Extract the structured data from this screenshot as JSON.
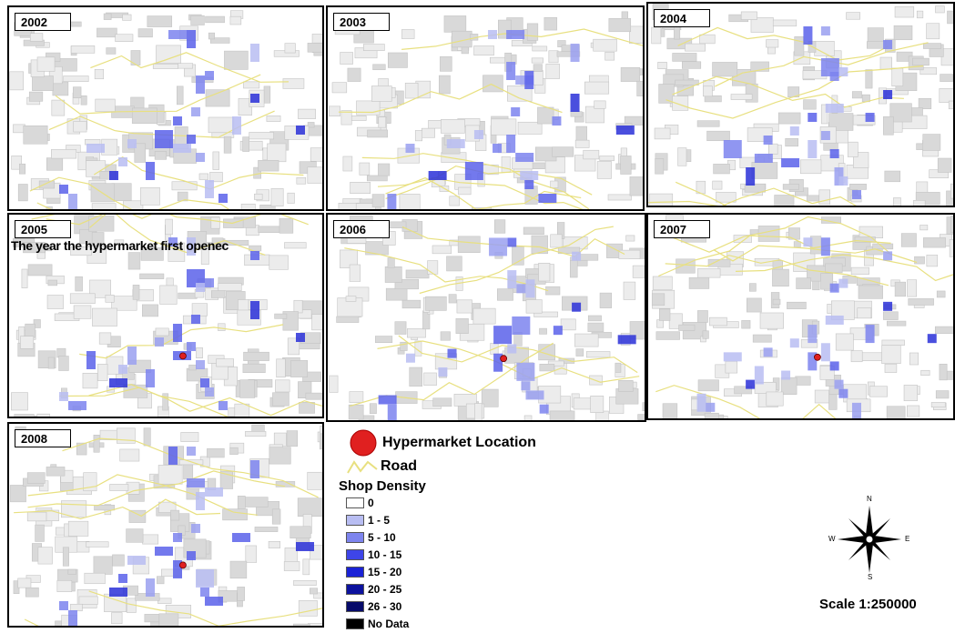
{
  "panels": [
    {
      "year": "2002",
      "note": "",
      "hypermarket": false
    },
    {
      "year": "2003",
      "note": "",
      "hypermarket": false
    },
    {
      "year": "2004",
      "note": "",
      "hypermarket": false
    },
    {
      "year": "2005",
      "note": "The year the hypermarket first openec",
      "hypermarket": true
    },
    {
      "year": "2006",
      "note": "",
      "hypermarket": true
    },
    {
      "year": "2007",
      "note": "",
      "hypermarket": true
    },
    {
      "year": "2008",
      "note": "",
      "hypermarket": true
    }
  ],
  "legend": {
    "hypermarket_label": "Hypermarket Location",
    "road_label": "Road",
    "density_title": "Shop Density",
    "classes": [
      {
        "label": "0",
        "color": "#ffffff"
      },
      {
        "label": "1 - 5",
        "color": "#b8bdf2"
      },
      {
        "label": "5 - 10",
        "color": "#7d84ee"
      },
      {
        "label": "10 - 15",
        "color": "#3e45e8"
      },
      {
        "label": "15 - 20",
        "color": "#1a22d6"
      },
      {
        "label": "20 - 25",
        "color": "#0c129e"
      },
      {
        "label": "26 - 30",
        "color": "#060a6a"
      },
      {
        "label": "No Data",
        "color": "#000000"
      }
    ]
  },
  "compass": {
    "n": "N",
    "s": "S",
    "e": "E",
    "w": "W"
  },
  "scale_text": "Scale 1:250000",
  "colors": {
    "hypermarket": "#e02020",
    "road": "#e8e080",
    "basemap_lines": "#c4c4c4"
  }
}
